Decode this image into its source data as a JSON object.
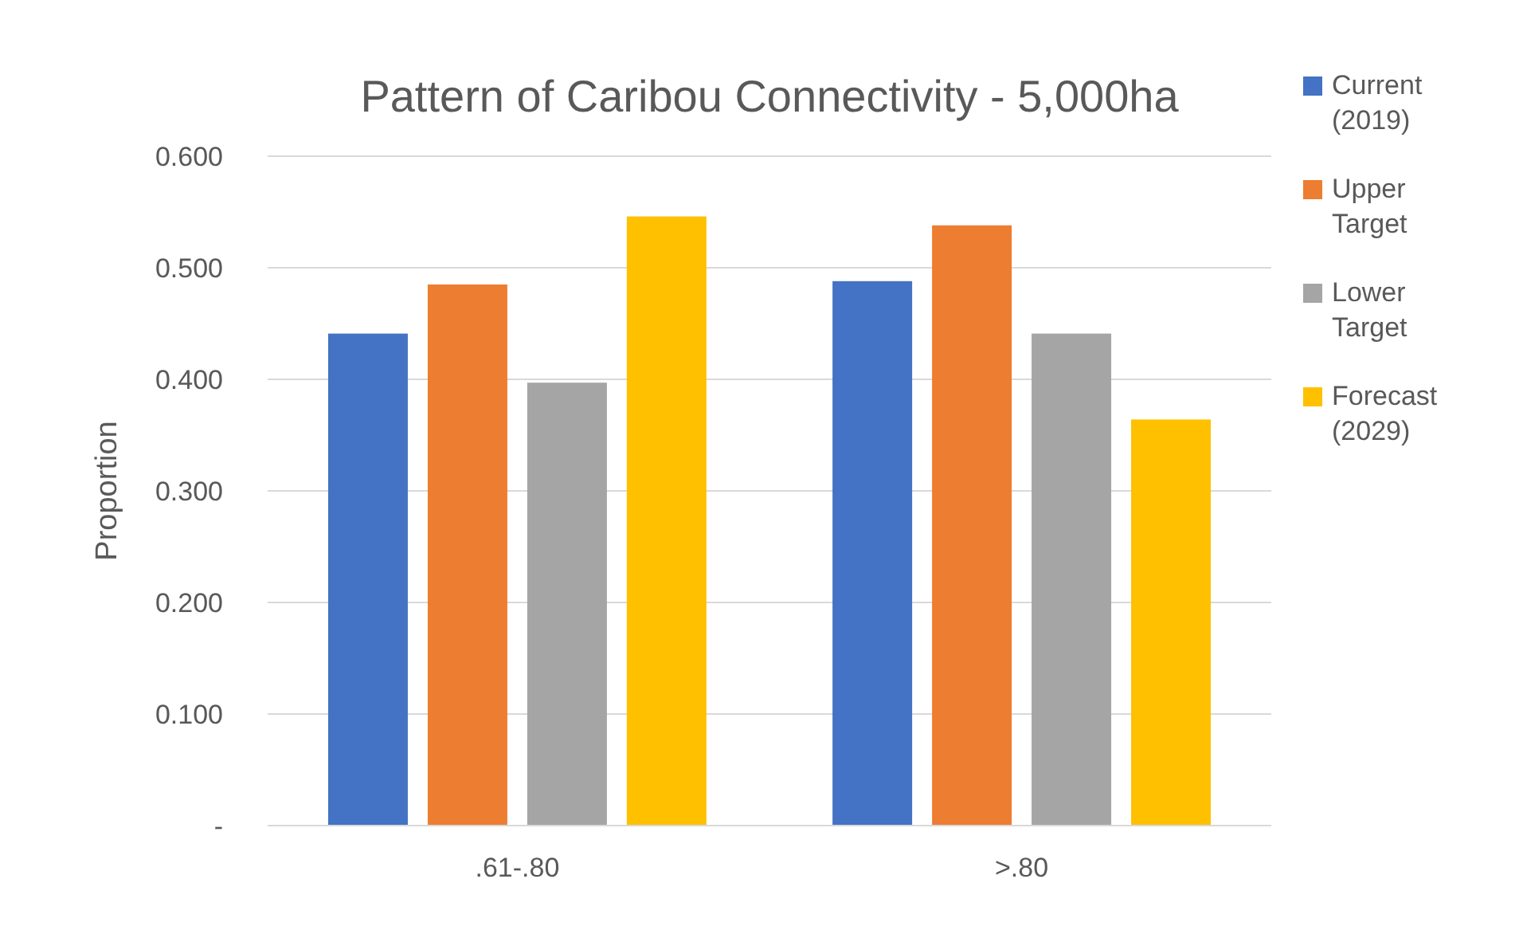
{
  "chart_data": {
    "type": "bar",
    "title": "Pattern of Caribou Connectivity - 5,000ha",
    "ylabel": "Proportion",
    "categories": [
      ".61-.80",
      ">.80"
    ],
    "series": [
      {
        "name": "Current (2019)",
        "color": "#4472c4",
        "values": [
          0.441,
          0.488
        ]
      },
      {
        "name": "Upper Target",
        "color": "#ed7d31",
        "values": [
          0.485,
          0.538
        ]
      },
      {
        "name": "Lower Target",
        "color": "#a5a5a5",
        "values": [
          0.397,
          0.441
        ]
      },
      {
        "name": "Forecast (2029)",
        "color": "#ffc000",
        "values": [
          0.546,
          0.364
        ]
      }
    ],
    "ylim": [
      0,
      0.6
    ],
    "yticks": [
      {
        "value": 0,
        "label": "-"
      },
      {
        "value": 0.1,
        "label": "0.100"
      },
      {
        "value": 0.2,
        "label": "0.200"
      },
      {
        "value": 0.3,
        "label": "0.300"
      },
      {
        "value": 0.4,
        "label": "0.400"
      },
      {
        "value": 0.5,
        "label": "0.500"
      },
      {
        "value": 0.6,
        "label": "0.600"
      }
    ],
    "grid": "y",
    "legend": "right"
  }
}
